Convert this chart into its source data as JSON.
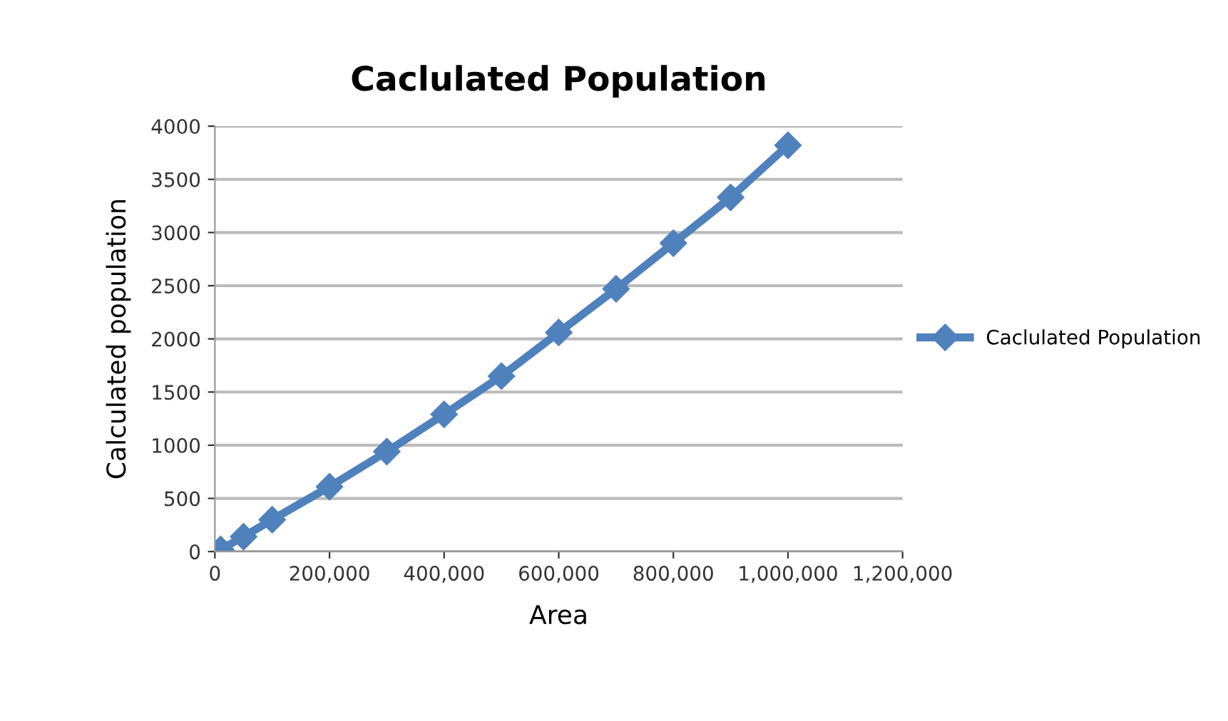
{
  "chart_data": {
    "type": "line",
    "title": "Caclulated Population",
    "xlabel": "Area",
    "ylabel": "Calculated population",
    "x": [
      10000,
      50000,
      100000,
      200000,
      300000,
      400000,
      500000,
      600000,
      700000,
      800000,
      900000,
      1000000
    ],
    "series": [
      {
        "name": "Caclulated Population",
        "color": "#4f81bd",
        "values": [
          20,
          140,
          300,
          610,
          940,
          1290,
          1650,
          2060,
          2470,
          2900,
          3330,
          3820
        ]
      }
    ],
    "xlim": [
      0,
      1200000
    ],
    "ylim": [
      0,
      4000
    ],
    "xticks": [
      {
        "value": 0,
        "label": "0"
      },
      {
        "value": 200000,
        "label": "200,000"
      },
      {
        "value": 400000,
        "label": "400,000"
      },
      {
        "value": 600000,
        "label": "600,000"
      },
      {
        "value": 800000,
        "label": "800,000"
      },
      {
        "value": 1000000,
        "label": "1,000,000"
      },
      {
        "value": 1200000,
        "label": "1,200,000"
      }
    ],
    "yticks": [
      0,
      500,
      1000,
      1500,
      2000,
      2500,
      3000,
      3500,
      4000
    ],
    "grid": "y",
    "legend": "right",
    "marker": "diamond",
    "line_style": "solid"
  }
}
